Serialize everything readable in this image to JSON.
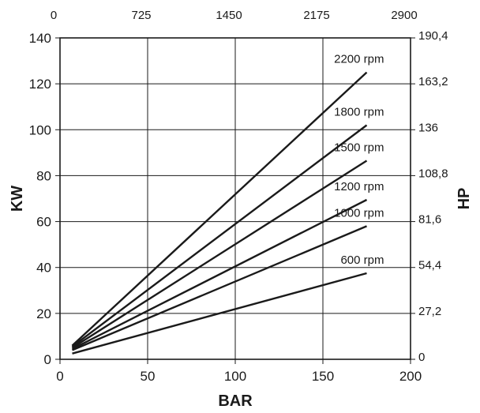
{
  "chart_data": {
    "type": "line",
    "xlabel": "BAR",
    "ylabel": "KW",
    "y2label": "HP",
    "xlim": [
      0,
      200
    ],
    "ylim": [
      0,
      140
    ],
    "x_ticks": [
      "0",
      "50",
      "100",
      "150",
      "200"
    ],
    "y_ticks": [
      "0",
      "20",
      "40",
      "60",
      "80",
      "100",
      "120",
      "140"
    ],
    "top_ticks": [
      "0",
      "725",
      "1450",
      "2175",
      "2900"
    ],
    "right_ticks": [
      "0",
      "27,2",
      "54,4",
      "81,6",
      "108,8",
      "136",
      "163,2",
      "190,4"
    ],
    "grid": true,
    "series": [
      {
        "name": "2200 rpm",
        "x": [
          7,
          175
        ],
        "y": [
          6,
          125
        ]
      },
      {
        "name": "1800 rpm",
        "x": [
          7,
          175
        ],
        "y": [
          5.5,
          102
        ]
      },
      {
        "name": "1500 rpm",
        "x": [
          7,
          175
        ],
        "y": [
          5,
          86.5
        ]
      },
      {
        "name": "1200 rpm",
        "x": [
          7,
          175
        ],
        "y": [
          4.5,
          69.5
        ]
      },
      {
        "name": "1000 rpm",
        "x": [
          7,
          175
        ],
        "y": [
          4,
          58
        ]
      },
      {
        "name": "600 rpm",
        "x": [
          7,
          175
        ],
        "y": [
          2.5,
          37.5
        ]
      }
    ]
  }
}
